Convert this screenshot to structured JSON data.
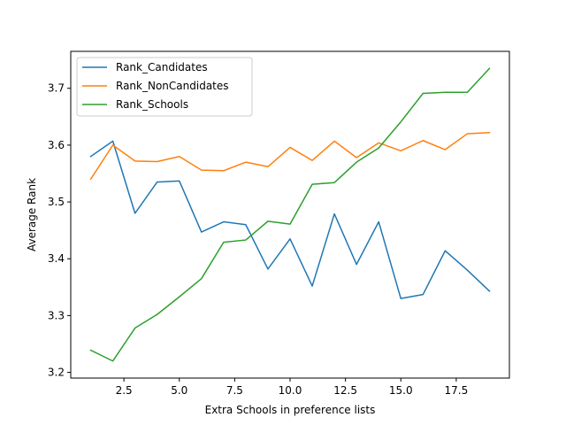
{
  "chart_data": {
    "type": "line",
    "title": "",
    "xlabel": "Extra Schools in preference lists",
    "ylabel": "Average Rank",
    "xlim": [
      0.1,
      19.9
    ],
    "ylim": [
      3.19,
      3.765
    ],
    "xticks": [
      2.5,
      5.0,
      7.5,
      10.0,
      12.5,
      15.0,
      17.5
    ],
    "xtick_labels": [
      "2.5",
      "5.0",
      "7.5",
      "10.0",
      "12.5",
      "15.0",
      "17.5"
    ],
    "yticks": [
      3.2,
      3.3,
      3.4,
      3.5,
      3.6,
      3.7
    ],
    "ytick_labels": [
      "3.2",
      "3.3",
      "3.4",
      "3.5",
      "3.6",
      "3.7"
    ],
    "grid": false,
    "legend_position": "top-left",
    "x": [
      1,
      2,
      3,
      4,
      5,
      6,
      7,
      8,
      9,
      10,
      11,
      12,
      13,
      14,
      15,
      16,
      17,
      18,
      19
    ],
    "series": [
      {
        "name": "Rank_Candidates",
        "color": "#1f77b4",
        "values": [
          3.58,
          3.607,
          3.48,
          3.535,
          3.537,
          3.447,
          3.465,
          3.46,
          3.382,
          3.435,
          3.352,
          3.479,
          3.39,
          3.465,
          3.33,
          3.337,
          3.414,
          3.38,
          3.343
        ]
      },
      {
        "name": "Rank_NonCandidates",
        "color": "#ff7f0e",
        "values": [
          3.54,
          3.6,
          3.572,
          3.571,
          3.58,
          3.556,
          3.555,
          3.57,
          3.562,
          3.596,
          3.573,
          3.607,
          3.578,
          3.604,
          3.59,
          3.608,
          3.592,
          3.62,
          3.622
        ]
      },
      {
        "name": "Rank_Schools",
        "color": "#2ca02c",
        "values": [
          3.239,
          3.22,
          3.278,
          3.302,
          3.333,
          3.365,
          3.429,
          3.433,
          3.466,
          3.461,
          3.531,
          3.534,
          3.57,
          3.595,
          3.641,
          3.691,
          3.693,
          3.693,
          3.735
        ]
      }
    ]
  }
}
